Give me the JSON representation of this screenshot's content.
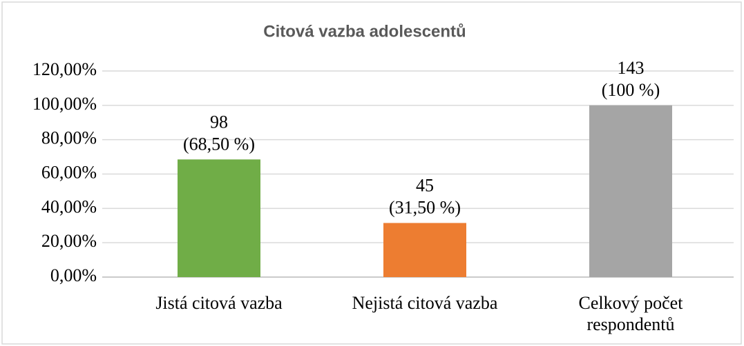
{
  "chart_data": {
    "type": "bar",
    "title": "Citová vazba adolescentů",
    "categories": [
      "Jistá citová vazba",
      "Nejistá citová vazba",
      "Celkový počet respondentů"
    ],
    "values": [
      68.5,
      31.5,
      100
    ],
    "value_labels": [
      [
        "98",
        "(68,50 %)"
      ],
      [
        "45",
        "(31,50 %)"
      ],
      [
        "143",
        "(100 %)"
      ]
    ],
    "colors": [
      "#70ad47",
      "#ed7d31",
      "#a5a5a5"
    ],
    "ylim": [
      0,
      120
    ],
    "yticks": [
      {
        "value": 0,
        "label": "0,00%"
      },
      {
        "value": 20,
        "label": "20,00%"
      },
      {
        "value": 40,
        "label": "40,00%"
      },
      {
        "value": 60,
        "label": "60,00%"
      },
      {
        "value": 80,
        "label": "80,00%"
      },
      {
        "value": 100,
        "label": "100,00%"
      },
      {
        "value": 120,
        "label": "120,00%"
      }
    ],
    "grid": true
  }
}
